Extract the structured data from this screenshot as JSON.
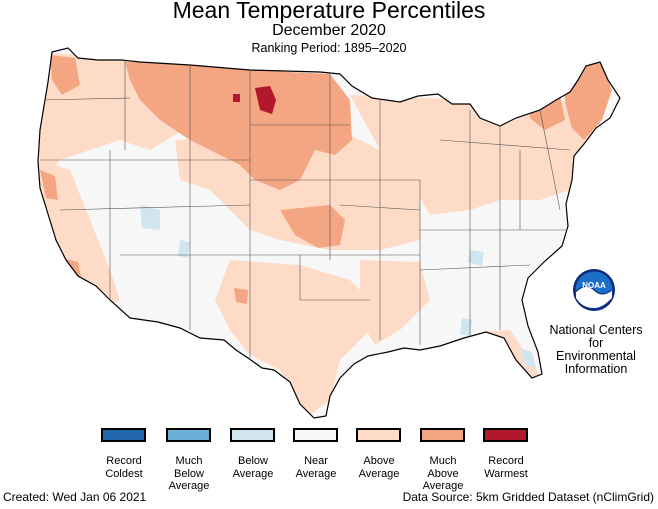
{
  "header": {
    "title": "Mean Temperature Percentiles",
    "subtitle": "December 2020",
    "ranking_period": "Ranking Period: 1895–2020"
  },
  "agency": {
    "logo_text": "NOAA",
    "name_lines": [
      "National Centers for",
      "Environmental",
      "Information"
    ]
  },
  "legend": {
    "items": [
      {
        "lines": [
          "Record",
          "Coldest"
        ],
        "color": "#2166ac"
      },
      {
        "lines": [
          "Much",
          "Below",
          "Average"
        ],
        "color": "#6baed6"
      },
      {
        "lines": [
          "Below",
          "Average"
        ],
        "color": "#d1e5f0"
      },
      {
        "lines": [
          "Near",
          "Average"
        ],
        "color": "#f7f7f7"
      },
      {
        "lines": [
          "Above",
          "Average"
        ],
        "color": "#fddbc7"
      },
      {
        "lines": [
          "Much",
          "Above",
          "Average"
        ],
        "color": "#f4a582"
      },
      {
        "lines": [
          "Record",
          "Warmest"
        ],
        "color": "#b2182b"
      }
    ]
  },
  "footer": {
    "created": "Created: Wed Jan 06 2021",
    "source": "Data Source: 5km Gridded Dataset (nClimGrid)"
  }
}
